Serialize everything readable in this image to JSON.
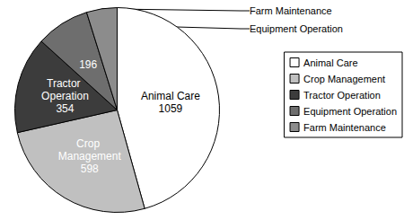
{
  "chart_data": {
    "type": "pie",
    "categories": [
      "Animal Care",
      "Crop Management",
      "Tractor Operation",
      "Equipment Operation",
      "Farm Maintenance"
    ],
    "values": [
      1059,
      598,
      354,
      196,
      112
    ],
    "colors": [
      "#ffffff",
      "#c0c0c0",
      "#3c3c3c",
      "#6e6e6e",
      "#8c8c8c"
    ],
    "data_labels": true,
    "legend": "right"
  }
}
